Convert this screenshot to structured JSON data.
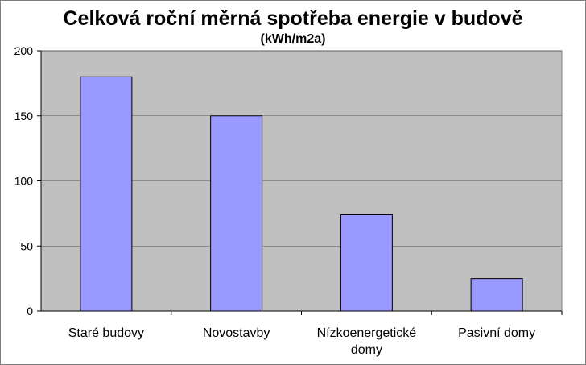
{
  "chart_data": {
    "type": "bar",
    "title": "Celková roční měrná spotřeba energie v budově",
    "subtitle": "(kWh/m2a)",
    "categories": [
      [
        "Staré budovy"
      ],
      [
        "Novostavby"
      ],
      [
        "Nízkoenergetické",
        "domy"
      ],
      [
        "Pasivní domy"
      ]
    ],
    "values": [
      180,
      150,
      74,
      25
    ],
    "ylim": [
      0,
      200
    ],
    "yticks": [
      0,
      50,
      100,
      150,
      200
    ],
    "grid": true,
    "legend": "none",
    "colors": {
      "plot_background": "#c0c0c0",
      "bar_fill": "#9999ff",
      "bar_stroke": "#000000",
      "grid": "#000000"
    }
  }
}
